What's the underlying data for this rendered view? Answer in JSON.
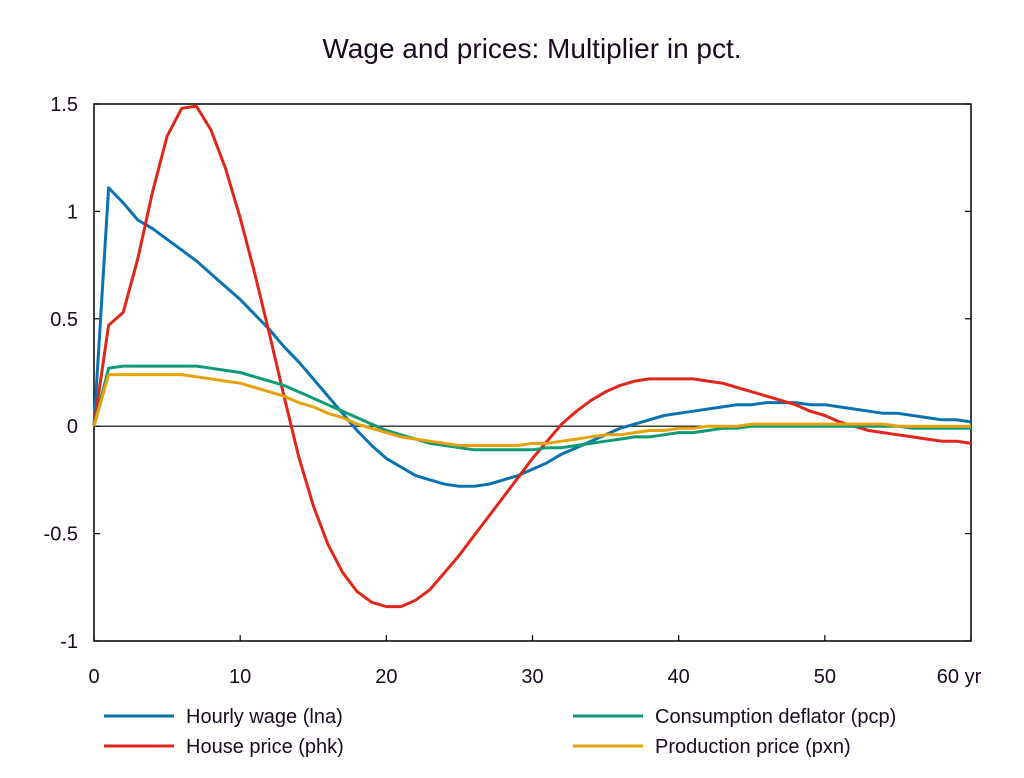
{
  "chart_data": {
    "type": "line",
    "title": "Wage and prices: Multiplier in pct.",
    "xlabel": "",
    "ylabel": "",
    "x_unit_label": "yr",
    "xlim": [
      0,
      60
    ],
    "ylim": [
      -1,
      1.5
    ],
    "x_ticks": [
      0,
      10,
      20,
      30,
      40,
      50,
      60
    ],
    "x_tick_labels": [
      "0",
      "10",
      "20",
      "30",
      "40",
      "50",
      "60 yr"
    ],
    "y_ticks": [
      1.5,
      1,
      0.5,
      0,
      -0.5,
      -1
    ],
    "y_tick_labels": [
      "1.5",
      "1",
      "0.5",
      "0",
      "-0.5",
      "-1"
    ],
    "grid": false,
    "zero_line": true,
    "legend_position": "bottom",
    "x": [
      0,
      1,
      2,
      3,
      4,
      5,
      6,
      7,
      8,
      9,
      10,
      11,
      12,
      13,
      14,
      15,
      16,
      17,
      18,
      19,
      20,
      21,
      22,
      23,
      24,
      25,
      26,
      27,
      28,
      29,
      30,
      31,
      32,
      33,
      34,
      35,
      36,
      37,
      38,
      39,
      40,
      41,
      42,
      43,
      44,
      45,
      46,
      47,
      48,
      49,
      50,
      51,
      52,
      53,
      54,
      55,
      56,
      57,
      58,
      59,
      60
    ],
    "series": [
      {
        "name": "Hourly wage (lna)",
        "color": "#0a72b0",
        "values": [
          0.0,
          1.11,
          1.04,
          0.96,
          0.92,
          0.87,
          0.82,
          0.77,
          0.71,
          0.65,
          0.59,
          0.52,
          0.45,
          0.37,
          0.3,
          0.22,
          0.14,
          0.06,
          -0.02,
          -0.09,
          -0.15,
          -0.19,
          -0.23,
          -0.25,
          -0.27,
          -0.28,
          -0.28,
          -0.27,
          -0.25,
          -0.23,
          -0.2,
          -0.17,
          -0.13,
          -0.1,
          -0.07,
          -0.04,
          -0.01,
          0.01,
          0.03,
          0.05,
          0.06,
          0.07,
          0.08,
          0.09,
          0.1,
          0.1,
          0.11,
          0.11,
          0.11,
          0.1,
          0.1,
          0.09,
          0.08,
          0.07,
          0.06,
          0.06,
          0.05,
          0.04,
          0.03,
          0.03,
          0.02
        ]
      },
      {
        "name": "House price (phk)",
        "color": "#e0261a",
        "values": [
          0.0,
          0.47,
          0.53,
          0.78,
          1.09,
          1.35,
          1.48,
          1.49,
          1.38,
          1.2,
          0.97,
          0.71,
          0.43,
          0.14,
          -0.14,
          -0.37,
          -0.55,
          -0.68,
          -0.77,
          -0.82,
          -0.84,
          -0.84,
          -0.81,
          -0.76,
          -0.68,
          -0.6,
          -0.51,
          -0.42,
          -0.33,
          -0.24,
          -0.15,
          -0.07,
          0.01,
          0.07,
          0.12,
          0.16,
          0.19,
          0.21,
          0.22,
          0.22,
          0.22,
          0.22,
          0.21,
          0.2,
          0.18,
          0.16,
          0.14,
          0.12,
          0.1,
          0.07,
          0.05,
          0.02,
          0.0,
          -0.02,
          -0.03,
          -0.04,
          -0.05,
          -0.06,
          -0.07,
          -0.07,
          -0.08
        ]
      },
      {
        "name": "Consumption deflator (pcp)",
        "color": "#0f9a76",
        "values": [
          0.0,
          0.27,
          0.28,
          0.28,
          0.28,
          0.28,
          0.28,
          0.28,
          0.27,
          0.26,
          0.25,
          0.23,
          0.21,
          0.19,
          0.16,
          0.13,
          0.1,
          0.07,
          0.04,
          0.01,
          -0.02,
          -0.04,
          -0.06,
          -0.08,
          -0.09,
          -0.1,
          -0.11,
          -0.11,
          -0.11,
          -0.11,
          -0.11,
          -0.1,
          -0.1,
          -0.09,
          -0.08,
          -0.07,
          -0.06,
          -0.05,
          -0.05,
          -0.04,
          -0.03,
          -0.03,
          -0.02,
          -0.01,
          -0.01,
          0.0,
          0.0,
          0.0,
          0.0,
          0.0,
          0.0,
          0.0,
          0.0,
          0.0,
          0.0,
          0.0,
          -0.01,
          -0.01,
          -0.01,
          -0.01,
          -0.01
        ]
      },
      {
        "name": "Production price (pxn)",
        "color": "#e6a20a",
        "values": [
          0.0,
          0.24,
          0.24,
          0.24,
          0.24,
          0.24,
          0.24,
          0.23,
          0.22,
          0.21,
          0.2,
          0.18,
          0.16,
          0.14,
          0.11,
          0.09,
          0.06,
          0.04,
          0.01,
          -0.01,
          -0.03,
          -0.05,
          -0.06,
          -0.07,
          -0.08,
          -0.09,
          -0.09,
          -0.09,
          -0.09,
          -0.09,
          -0.08,
          -0.08,
          -0.07,
          -0.06,
          -0.05,
          -0.04,
          -0.04,
          -0.03,
          -0.02,
          -0.02,
          -0.01,
          -0.01,
          0.0,
          0.0,
          0.0,
          0.01,
          0.01,
          0.01,
          0.01,
          0.01,
          0.01,
          0.01,
          0.01,
          0.01,
          0.01,
          0.0,
          0.0,
          0.0,
          0.0,
          0.0,
          0.0
        ]
      }
    ]
  }
}
